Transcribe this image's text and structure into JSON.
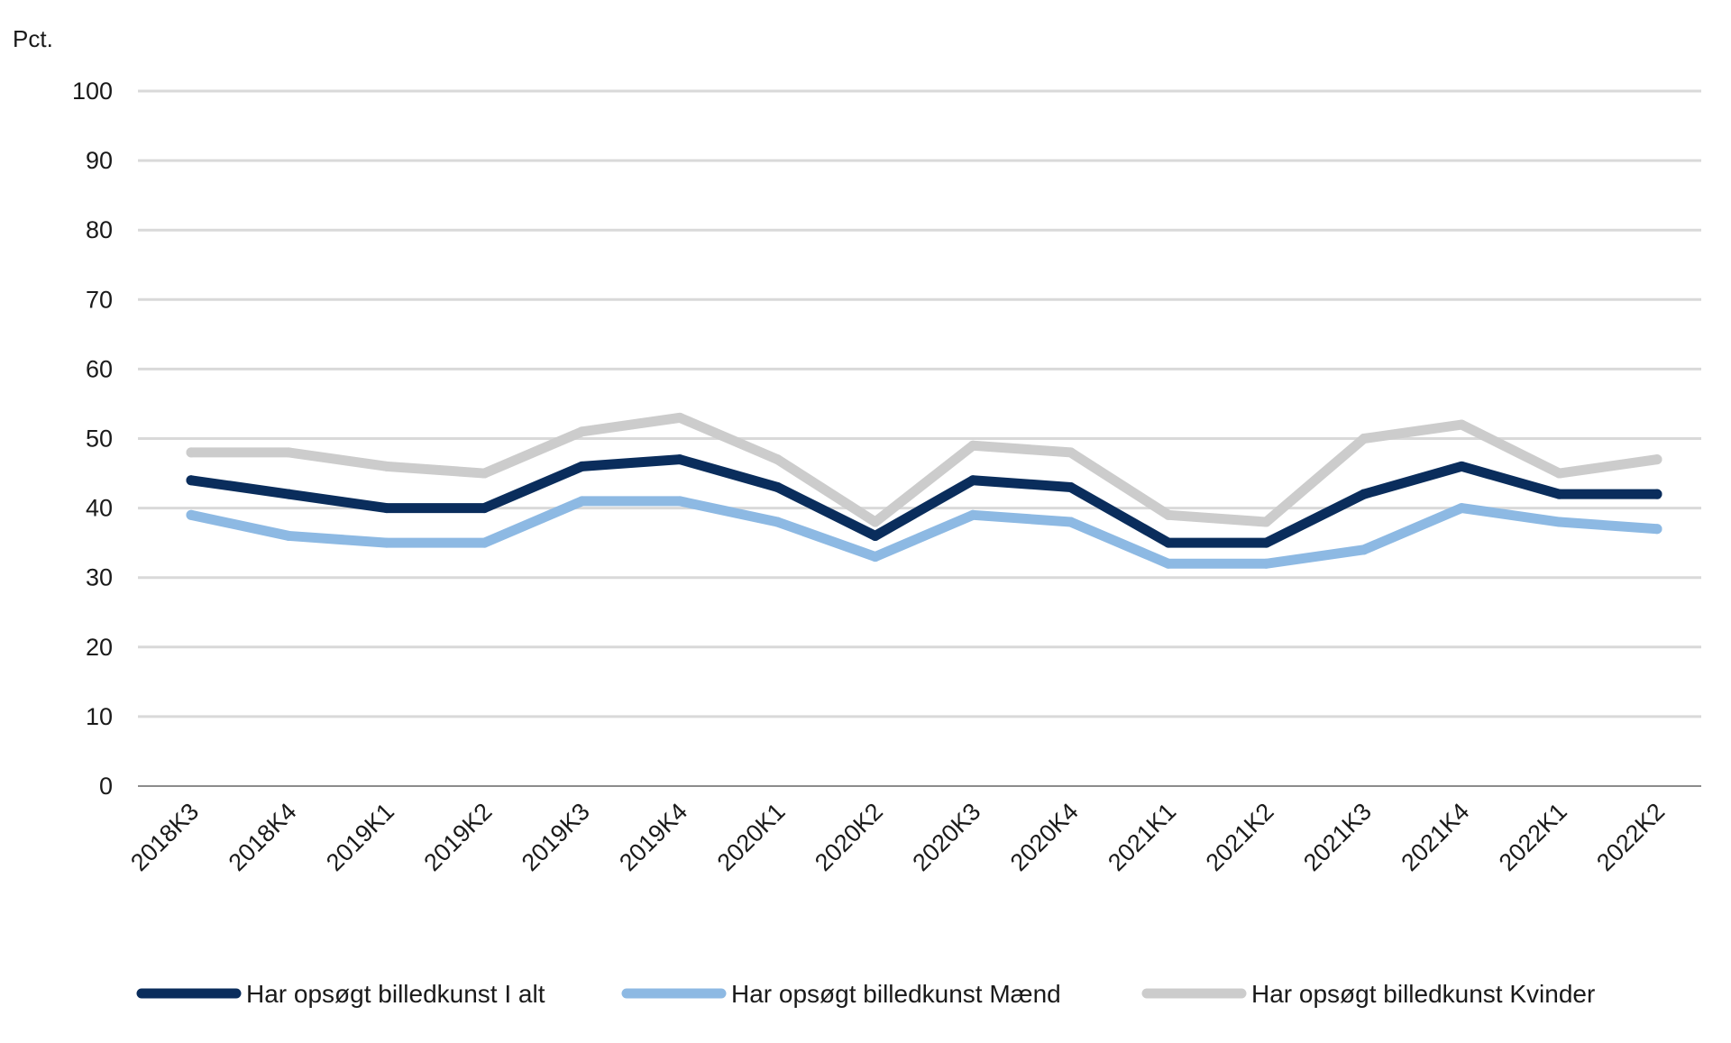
{
  "chart_data": {
    "type": "line",
    "title": "",
    "xlabel": "",
    "ylabel": "Pct.",
    "ylim": [
      0,
      100
    ],
    "yticks": [
      0,
      10,
      20,
      30,
      40,
      50,
      60,
      70,
      80,
      90,
      100
    ],
    "grid": true,
    "legend_position": "bottom",
    "categories": [
      "2018K3",
      "2018K4",
      "2019K1",
      "2019K2",
      "2019K3",
      "2019K4",
      "2020K1",
      "2020K2",
      "2020K3",
      "2020K4",
      "2021K1",
      "2021K2",
      "2021K3",
      "2021K4",
      "2022K1",
      "2022K2"
    ],
    "series": [
      {
        "name": "Har opsøgt billedkunst I alt",
        "color": "#0a2d5c",
        "values": [
          44,
          42,
          40,
          40,
          46,
          47,
          43,
          36,
          44,
          43,
          35,
          35,
          42,
          46,
          42,
          42
        ]
      },
      {
        "name": "Har opsøgt billedkunst Mænd",
        "color": "#8db9e3",
        "values": [
          39,
          36,
          35,
          35,
          41,
          41,
          38,
          33,
          39,
          38,
          32,
          32,
          34,
          40,
          38,
          37
        ]
      },
      {
        "name": "Har opsøgt billedkunst Kvinder",
        "color": "#cccccc",
        "values": [
          48,
          48,
          46,
          45,
          51,
          53,
          47,
          38,
          49,
          48,
          39,
          38,
          50,
          52,
          45,
          47
        ]
      }
    ]
  }
}
